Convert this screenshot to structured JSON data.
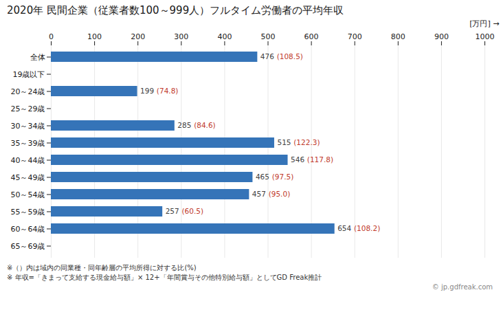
{
  "chart_data": {
    "type": "bar",
    "orientation": "horizontal",
    "title": "2020年 民間企業（従業者数100～999人）フルタイム労働者の平均年収",
    "xlabel": "[万円]",
    "footnotes": [
      "※（）内は域内の同業種・同年齢層の平均所得に対する比(%)",
      "※ 年収=「きまって支給する現金給与額」× 12+「年間賞与その他特別給与額」としてGD Freak推計"
    ],
    "source": "© jp.gdfreak.com",
    "categories": [
      "全体",
      "19歳以下",
      "20～24歳",
      "25～29歳",
      "30～34歳",
      "35～39歳",
      "40～44歳",
      "45～49歳",
      "50～54歳",
      "55～59歳",
      "60～64歳",
      "65～69歳"
    ],
    "values": [
      476,
      null,
      199,
      null,
      285,
      515,
      546,
      465,
      457,
      257,
      654,
      null
    ],
    "ratios": {
      "values": [
        108.5,
        null,
        74.8,
        null,
        84.6,
        122.3,
        117.8,
        97.5,
        95.0,
        60.5,
        108.2,
        null
      ],
      "labels": [
        "(108.5)",
        null,
        "(74.8)",
        null,
        "(84.6)",
        "(122.3)",
        "(117.8)",
        "(97.5)",
        "(95.0)",
        "(60.5)",
        "(108.2)",
        null
      ],
      "color": "#c0392b"
    },
    "color": "#3574b8",
    "xlim": [
      0,
      1000
    ],
    "xticks": [
      0,
      100,
      200,
      300,
      400,
      500,
      600,
      700,
      800,
      900,
      1000
    ],
    "grid": true,
    "data_labels": true
  }
}
